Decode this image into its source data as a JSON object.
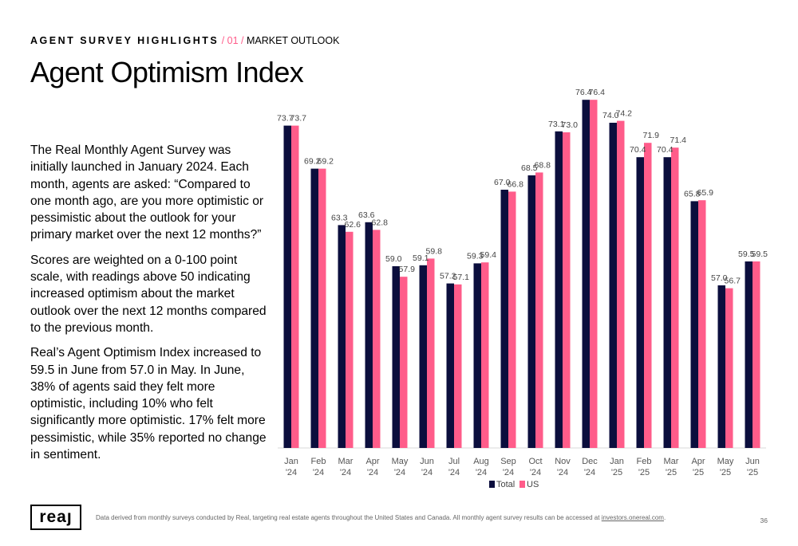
{
  "header": {
    "section": "AGENT SURVEY HIGHLIGHTS",
    "sep1": " / ",
    "number": "01",
    "sep2": " / ",
    "subsection": "MARKET OUTLOOK"
  },
  "title": "Agent Optimism Index",
  "paragraphs": [
    "The Real Monthly Agent Survey was initially launched in January 2024. Each month, agents are asked: “Compared to one month ago, are you more optimistic or pessimistic about the outlook for your primary market over the next 12 months?”",
    "Scores are weighted on a 0-100 point scale, with readings above 50 indicating increased optimism about the market outlook over the next 12 months compared to the previous month.",
    "Real’s Agent Optimism Index increased to 59.5 in June from 57.0 in May. In June, 38% of agents said they felt more optimistic, including 10% who felt significantly more optimistic. 17% felt more pessimistic, while 35% reported no change in sentiment."
  ],
  "chart_data": {
    "type": "bar",
    "categories": [
      "Jan\n'24",
      "Feb\n'24",
      "Mar\n'24",
      "Apr\n'24",
      "May\n'24",
      "Jun\n'24",
      "Jul\n'24",
      "Aug\n'24",
      "Sep\n'24",
      "Oct\n'24",
      "Nov\n'24",
      "Dec\n'24",
      "Jan\n'25",
      "Feb\n'25",
      "Mar\n'25",
      "Apr\n'25",
      "May\n'25",
      "Jun\n'25"
    ],
    "series": [
      {
        "name": "Total",
        "color": "#0b0e3d",
        "values": [
          73.7,
          69.2,
          63.3,
          63.6,
          59.0,
          59.1,
          57.2,
          59.3,
          67.0,
          68.5,
          73.1,
          76.4,
          74.0,
          70.4,
          70.4,
          65.8,
          57.0,
          59.5
        ]
      },
      {
        "name": "US",
        "color": "#ff5c8a",
        "values": [
          73.7,
          69.2,
          62.6,
          62.8,
          57.9,
          59.8,
          57.1,
          59.4,
          66.8,
          68.8,
          73.0,
          76.4,
          74.2,
          71.9,
          71.4,
          65.9,
          56.7,
          59.5
        ]
      }
    ],
    "ylim": [
      40,
      80
    ],
    "grid": false,
    "legend": "bottom"
  },
  "footer": {
    "logo": "reaȷ",
    "note": "Data derived from monthly surveys conducted by Real, targeting real estate agents throughout the United States and Canada. All monthly agent survey results can be accessed at ",
    "link": "investors.onereal.com",
    "note_end": ".",
    "page": "36"
  }
}
